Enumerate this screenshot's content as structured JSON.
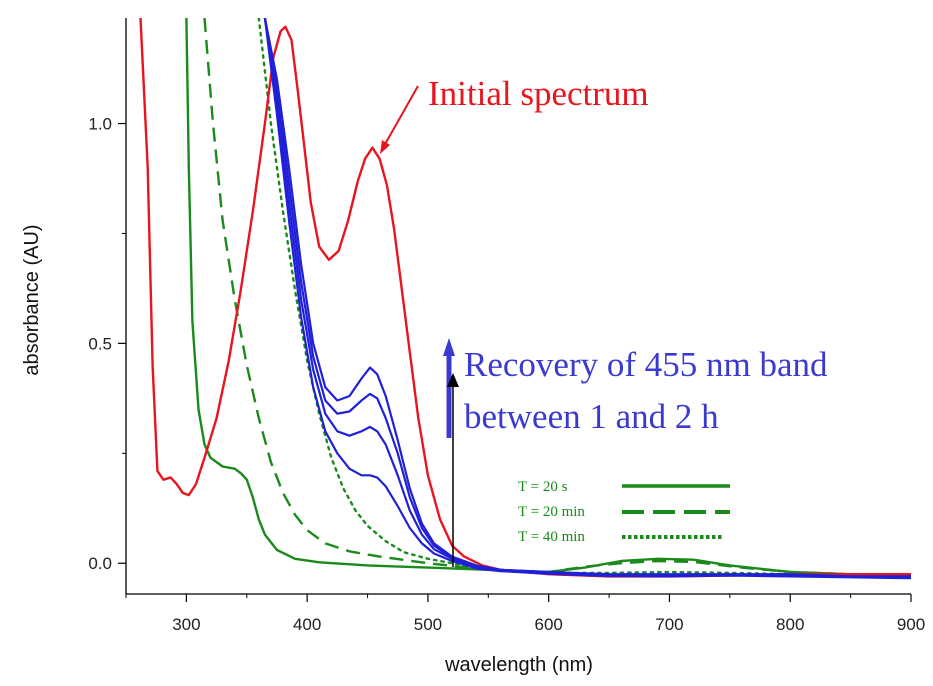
{
  "chart_data": {
    "type": "line",
    "title": "",
    "xlabel": "wavelength (nm)",
    "ylabel": "absorbance (AU)",
    "xlim": [
      250,
      900
    ],
    "ylim": [
      -0.07,
      1.24
    ],
    "x_ticks": [
      300,
      400,
      500,
      600,
      700,
      800,
      900
    ],
    "y_ticks": [
      0.0,
      0.5,
      1.0
    ],
    "x_tick_labels": [
      "300",
      "400",
      "500",
      "600",
      "700",
      "800",
      "900"
    ],
    "y_tick_labels": [
      "0.0",
      "0.5",
      "1.0"
    ],
    "grid": false,
    "colors": {
      "initial": "#e8141e",
      "recovery": "#2020d8",
      "timecourse": "#1a8a1a",
      "arrow": "#000000"
    },
    "series": [
      {
        "group": "initial",
        "points": [
          [
            262,
            1.24
          ],
          [
            268,
            0.9
          ],
          [
            272,
            0.45
          ],
          [
            276,
            0.21
          ],
          [
            281,
            0.19
          ],
          [
            287,
            0.195
          ],
          [
            292,
            0.18
          ],
          [
            297,
            0.16
          ],
          [
            302,
            0.155
          ],
          [
            308,
            0.18
          ],
          [
            315,
            0.24
          ],
          [
            325,
            0.33
          ],
          [
            335,
            0.46
          ],
          [
            345,
            0.62
          ],
          [
            355,
            0.8
          ],
          [
            365,
            1.0
          ],
          [
            372,
            1.15
          ],
          [
            378,
            1.21
          ],
          [
            382,
            1.22
          ],
          [
            387,
            1.19
          ],
          [
            392,
            1.08
          ],
          [
            398,
            0.94
          ],
          [
            403,
            0.82
          ],
          [
            410,
            0.72
          ],
          [
            418,
            0.69
          ],
          [
            426,
            0.71
          ],
          [
            434,
            0.78
          ],
          [
            442,
            0.87
          ],
          [
            448,
            0.92
          ],
          [
            454,
            0.945
          ],
          [
            460,
            0.92
          ],
          [
            466,
            0.86
          ],
          [
            472,
            0.76
          ],
          [
            478,
            0.63
          ],
          [
            485,
            0.48
          ],
          [
            492,
            0.33
          ],
          [
            500,
            0.2
          ],
          [
            510,
            0.1
          ],
          [
            520,
            0.04
          ],
          [
            530,
            0.015
          ],
          [
            545,
            -0.005
          ],
          [
            560,
            -0.015
          ],
          [
            580,
            -0.02
          ],
          [
            600,
            -0.025
          ],
          [
            650,
            -0.03
          ],
          [
            700,
            -0.03
          ],
          [
            750,
            -0.028
          ],
          [
            800,
            -0.025
          ],
          [
            850,
            -0.025
          ],
          [
            900,
            -0.025
          ]
        ]
      },
      {
        "group": "recovery",
        "points": [
          [
            365,
            1.24
          ],
          [
            375,
            1.1
          ],
          [
            385,
            0.9
          ],
          [
            395,
            0.68
          ],
          [
            405,
            0.5
          ],
          [
            415,
            0.4
          ],
          [
            425,
            0.37
          ],
          [
            435,
            0.38
          ],
          [
            445,
            0.42
          ],
          [
            452,
            0.445
          ],
          [
            458,
            0.43
          ],
          [
            465,
            0.38
          ],
          [
            475,
            0.28
          ],
          [
            485,
            0.17
          ],
          [
            495,
            0.09
          ],
          [
            505,
            0.045
          ],
          [
            520,
            0.015
          ],
          [
            540,
            -0.005
          ],
          [
            560,
            -0.015
          ],
          [
            600,
            -0.02
          ],
          [
            650,
            -0.025
          ],
          [
            700,
            -0.025
          ],
          [
            750,
            -0.025
          ],
          [
            800,
            -0.025
          ],
          [
            850,
            -0.03
          ],
          [
            900,
            -0.03
          ]
        ]
      },
      {
        "group": "recovery",
        "points": [
          [
            365,
            1.24
          ],
          [
            375,
            1.08
          ],
          [
            385,
            0.86
          ],
          [
            395,
            0.64
          ],
          [
            405,
            0.47
          ],
          [
            415,
            0.37
          ],
          [
            425,
            0.34
          ],
          [
            435,
            0.345
          ],
          [
            445,
            0.37
          ],
          [
            452,
            0.385
          ],
          [
            458,
            0.375
          ],
          [
            465,
            0.33
          ],
          [
            475,
            0.25
          ],
          [
            485,
            0.15
          ],
          [
            495,
            0.08
          ],
          [
            505,
            0.04
          ],
          [
            520,
            0.012
          ],
          [
            540,
            -0.008
          ],
          [
            560,
            -0.015
          ],
          [
            600,
            -0.022
          ],
          [
            650,
            -0.027
          ],
          [
            700,
            -0.027
          ],
          [
            750,
            -0.026
          ],
          [
            800,
            -0.027
          ],
          [
            850,
            -0.03
          ],
          [
            900,
            -0.032
          ]
        ]
      },
      {
        "group": "recovery",
        "points": [
          [
            365,
            1.24
          ],
          [
            375,
            1.05
          ],
          [
            385,
            0.82
          ],
          [
            395,
            0.6
          ],
          [
            405,
            0.44
          ],
          [
            415,
            0.34
          ],
          [
            425,
            0.3
          ],
          [
            435,
            0.29
          ],
          [
            445,
            0.3
          ],
          [
            452,
            0.31
          ],
          [
            458,
            0.3
          ],
          [
            465,
            0.27
          ],
          [
            475,
            0.2
          ],
          [
            485,
            0.12
          ],
          [
            495,
            0.065
          ],
          [
            505,
            0.032
          ],
          [
            520,
            0.01
          ],
          [
            540,
            -0.01
          ],
          [
            560,
            -0.017
          ],
          [
            600,
            -0.023
          ],
          [
            650,
            -0.028
          ],
          [
            700,
            -0.028
          ],
          [
            750,
            -0.027
          ],
          [
            800,
            -0.028
          ],
          [
            850,
            -0.031
          ],
          [
            900,
            -0.033
          ]
        ]
      },
      {
        "group": "recovery",
        "points": [
          [
            365,
            1.24
          ],
          [
            375,
            1.02
          ],
          [
            385,
            0.78
          ],
          [
            395,
            0.56
          ],
          [
            405,
            0.4
          ],
          [
            415,
            0.3
          ],
          [
            425,
            0.25
          ],
          [
            435,
            0.215
          ],
          [
            445,
            0.2
          ],
          [
            452,
            0.2
          ],
          [
            458,
            0.195
          ],
          [
            465,
            0.175
          ],
          [
            475,
            0.13
          ],
          [
            485,
            0.08
          ],
          [
            495,
            0.045
          ],
          [
            505,
            0.022
          ],
          [
            520,
            0.005
          ],
          [
            540,
            -0.012
          ],
          [
            560,
            -0.018
          ],
          [
            600,
            -0.024
          ],
          [
            650,
            -0.029
          ],
          [
            700,
            -0.03
          ],
          [
            750,
            -0.028
          ],
          [
            800,
            -0.03
          ],
          [
            850,
            -0.032
          ],
          [
            900,
            -0.034
          ]
        ]
      },
      {
        "name": "T = 20 s",
        "group": "timecourse",
        "dash": "solid",
        "points": [
          [
            300,
            1.24
          ],
          [
            302,
            0.9
          ],
          [
            305,
            0.55
          ],
          [
            310,
            0.35
          ],
          [
            315,
            0.27
          ],
          [
            320,
            0.24
          ],
          [
            330,
            0.22
          ],
          [
            340,
            0.215
          ],
          [
            345,
            0.205
          ],
          [
            350,
            0.19
          ],
          [
            355,
            0.15
          ],
          [
            360,
            0.1
          ],
          [
            365,
            0.065
          ],
          [
            375,
            0.03
          ],
          [
            390,
            0.01
          ],
          [
            410,
            0.002
          ],
          [
            450,
            -0.005
          ],
          [
            500,
            -0.01
          ],
          [
            550,
            -0.015
          ],
          [
            600,
            -0.02
          ],
          [
            630,
            -0.01
          ],
          [
            660,
            0.005
          ],
          [
            690,
            0.01
          ],
          [
            720,
            0.008
          ],
          [
            750,
            -0.005
          ],
          [
            800,
            -0.02
          ],
          [
            850,
            -0.025
          ],
          [
            900,
            -0.028
          ]
        ]
      },
      {
        "name": "T = 20 min",
        "group": "timecourse",
        "dash": "dashed",
        "points": [
          [
            315,
            1.24
          ],
          [
            322,
            1.0
          ],
          [
            330,
            0.78
          ],
          [
            340,
            0.6
          ],
          [
            350,
            0.45
          ],
          [
            360,
            0.33
          ],
          [
            370,
            0.23
          ],
          [
            380,
            0.16
          ],
          [
            390,
            0.11
          ],
          [
            400,
            0.075
          ],
          [
            415,
            0.045
          ],
          [
            435,
            0.027
          ],
          [
            460,
            0.015
          ],
          [
            500,
            0.0
          ],
          [
            550,
            -0.015
          ],
          [
            600,
            -0.02
          ],
          [
            630,
            -0.008
          ],
          [
            660,
            0.0
          ],
          [
            690,
            0.005
          ],
          [
            720,
            0.003
          ],
          [
            760,
            -0.01
          ],
          [
            800,
            -0.02
          ],
          [
            850,
            -0.025
          ],
          [
            900,
            -0.028
          ]
        ]
      },
      {
        "name": "T = 40 min",
        "group": "timecourse",
        "dash": "dotted",
        "points": [
          [
            360,
            1.24
          ],
          [
            370,
            1.0
          ],
          [
            380,
            0.8
          ],
          [
            390,
            0.62
          ],
          [
            400,
            0.46
          ],
          [
            410,
            0.34
          ],
          [
            420,
            0.24
          ],
          [
            430,
            0.17
          ],
          [
            440,
            0.12
          ],
          [
            450,
            0.085
          ],
          [
            465,
            0.05
          ],
          [
            480,
            0.025
          ],
          [
            500,
            0.01
          ],
          [
            530,
            -0.005
          ],
          [
            560,
            -0.015
          ],
          [
            600,
            -0.022
          ],
          [
            650,
            -0.022
          ],
          [
            700,
            -0.02
          ],
          [
            750,
            -0.022
          ],
          [
            800,
            -0.025
          ],
          [
            900,
            -0.03
          ]
        ]
      }
    ],
    "annotations": {
      "initial_label": "Initial spectrum",
      "recovery_line1": "Recovery of 455 nm band",
      "recovery_line2": "between 1 and 2 h"
    }
  }
}
